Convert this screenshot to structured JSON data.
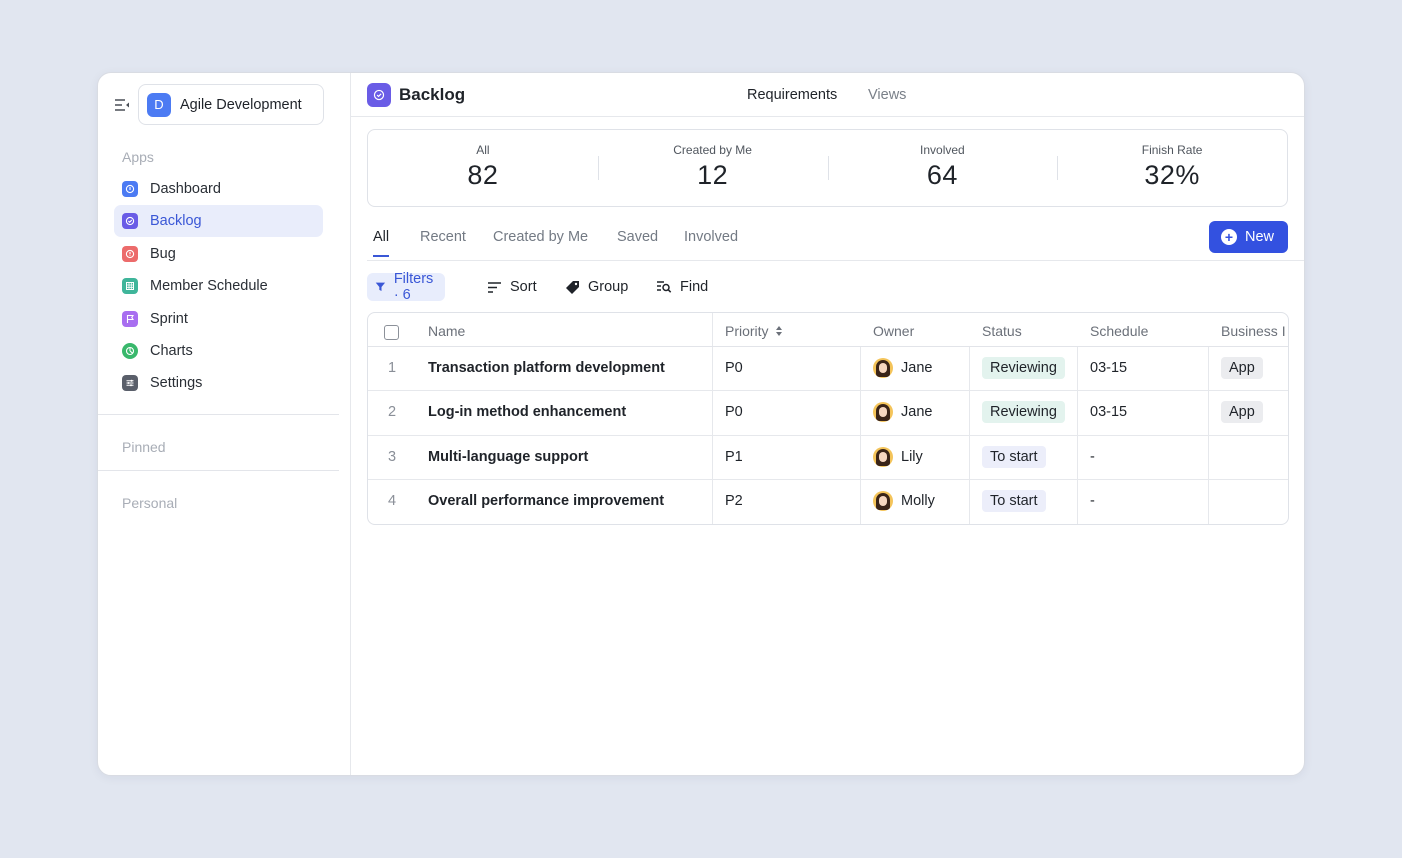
{
  "workspace": {
    "initial": "D",
    "name": "Agile Development"
  },
  "sidebar": {
    "apps_label": "Apps",
    "items": [
      {
        "label": "Dashboard",
        "icon": "dashboard-icon",
        "color": "#4c7bf3"
      },
      {
        "label": "Backlog",
        "icon": "backlog-icon",
        "color": "#6a5ce6"
      },
      {
        "label": "Bug",
        "icon": "bug-icon",
        "color": "#ec6b6b"
      },
      {
        "label": "Member Schedule",
        "icon": "schedule-icon",
        "color": "#3fb59a"
      },
      {
        "label": "Sprint",
        "icon": "sprint-flag-icon",
        "color": "#a86ef0"
      },
      {
        "label": "Charts",
        "icon": "charts-icon",
        "color": "#39b86c"
      },
      {
        "label": "Settings",
        "icon": "settings-icon",
        "color": "#5a5f6a"
      }
    ],
    "pinned_label": "Pinned",
    "personal_label": "Personal"
  },
  "header": {
    "title": "Backlog",
    "tabs": [
      "Requirements",
      "Views"
    ]
  },
  "stats": [
    {
      "label": "All",
      "value": "82"
    },
    {
      "label": "Created by Me",
      "value": "12"
    },
    {
      "label": "Involved",
      "value": "64"
    },
    {
      "label": "Finish Rate",
      "value": "32%"
    }
  ],
  "tabs": [
    "All",
    "Recent",
    "Created by Me",
    "Saved",
    "Involved"
  ],
  "new_button": "New",
  "toolbar": {
    "filters": "Filters · 6",
    "sort": "Sort",
    "group": "Group",
    "find": "Find"
  },
  "table": {
    "columns": [
      "Name",
      "Priority",
      "Owner",
      "Status",
      "Schedule",
      "Business I"
    ],
    "rows": [
      {
        "index": "1",
        "name": "Transaction platform development",
        "priority": "P0",
        "owner": "Jane",
        "status": "Reviewing",
        "schedule": "03-15",
        "business": "App"
      },
      {
        "index": "2",
        "name": "Log-in method enhancement",
        "priority": "P0",
        "owner": "Jane",
        "status": "Reviewing",
        "schedule": "03-15",
        "business": "App"
      },
      {
        "index": "3",
        "name": "Multi-language support",
        "priority": "P1",
        "owner": "Lily",
        "status": "To start",
        "schedule": "-",
        "business": ""
      },
      {
        "index": "4",
        "name": "Overall performance improvement",
        "priority": "P2",
        "owner": "Molly",
        "status": "To start",
        "schedule": "-",
        "business": ""
      }
    ]
  },
  "colors": {
    "accent": "#3351e0",
    "active_bg": "#e9edfb"
  }
}
